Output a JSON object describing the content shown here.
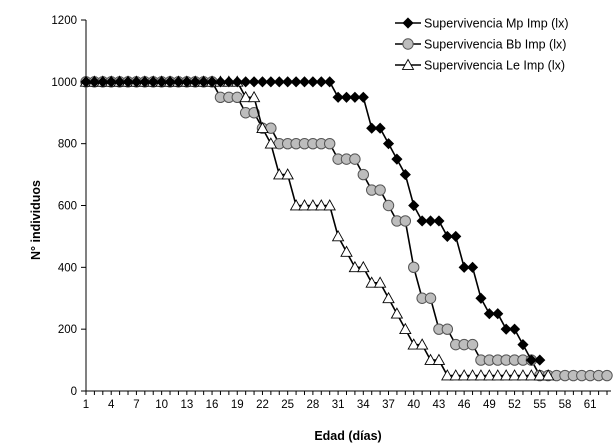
{
  "chart_data": {
    "type": "line",
    "title": "",
    "xlabel": "Edad (días)",
    "ylabel": "N° individuos",
    "x": [
      1,
      2,
      3,
      4,
      5,
      6,
      7,
      8,
      9,
      10,
      11,
      12,
      13,
      14,
      15,
      16,
      17,
      18,
      19,
      20,
      21,
      22,
      23,
      24,
      25,
      26,
      27,
      28,
      29,
      30,
      31,
      32,
      33,
      34,
      35,
      36,
      37,
      38,
      39,
      40,
      41,
      42,
      43,
      44,
      45,
      46,
      47,
      48,
      49,
      50,
      51,
      52,
      53,
      54,
      55,
      56,
      57,
      58,
      59,
      60,
      61,
      62,
      63
    ],
    "x_tick_labels": [
      "1",
      "4",
      "7",
      "10",
      "13",
      "16",
      "19",
      "22",
      "25",
      "28",
      "31",
      "34",
      "37",
      "40",
      "43",
      "46",
      "49",
      "52",
      "55",
      "58",
      "61"
    ],
    "xlim": [
      1,
      63
    ],
    "ylim": [
      0,
      1200
    ],
    "y_ticks": [
      0,
      200,
      400,
      600,
      800,
      1000,
      1200
    ],
    "grid": false,
    "legend_position": "top-right",
    "series": [
      {
        "name": "Supervivencia Mp Imp (lx)",
        "marker": "diamond",
        "color": "#000000",
        "x": [
          1,
          2,
          3,
          4,
          5,
          6,
          7,
          8,
          9,
          10,
          11,
          12,
          13,
          14,
          15,
          16,
          17,
          18,
          19,
          20,
          21,
          22,
          23,
          24,
          25,
          26,
          27,
          28,
          29,
          30,
          31,
          32,
          33,
          34,
          35,
          36,
          37,
          38,
          39,
          40,
          41,
          42,
          43,
          44,
          45,
          46,
          47,
          48,
          49,
          50,
          51,
          52,
          53,
          54,
          55
        ],
        "values": [
          1000,
          1000,
          1000,
          1000,
          1000,
          1000,
          1000,
          1000,
          1000,
          1000,
          1000,
          1000,
          1000,
          1000,
          1000,
          1000,
          1000,
          1000,
          1000,
          1000,
          1000,
          1000,
          1000,
          1000,
          1000,
          1000,
          1000,
          1000,
          1000,
          1000,
          950,
          950,
          950,
          950,
          850,
          850,
          800,
          750,
          700,
          600,
          550,
          550,
          550,
          500,
          500,
          400,
          400,
          300,
          250,
          250,
          200,
          200,
          150,
          100,
          100
        ]
      },
      {
        "name": "Supervivencia Bb Imp (lx)",
        "marker": "circle",
        "color": "#000000",
        "x": [
          1,
          2,
          3,
          4,
          5,
          6,
          7,
          8,
          9,
          10,
          11,
          12,
          13,
          14,
          15,
          16,
          17,
          18,
          19,
          20,
          21,
          22,
          23,
          24,
          25,
          26,
          27,
          28,
          29,
          30,
          31,
          32,
          33,
          34,
          35,
          36,
          37,
          38,
          39,
          40,
          41,
          42,
          43,
          44,
          45,
          46,
          47,
          48,
          49,
          50,
          51,
          52,
          53,
          54,
          55,
          56,
          57,
          58,
          59,
          60,
          61,
          62,
          63
        ],
        "values": [
          1000,
          1000,
          1000,
          1000,
          1000,
          1000,
          1000,
          1000,
          1000,
          1000,
          1000,
          1000,
          1000,
          1000,
          1000,
          1000,
          950,
          950,
          950,
          900,
          900,
          850,
          850,
          800,
          800,
          800,
          800,
          800,
          800,
          800,
          750,
          750,
          750,
          700,
          650,
          650,
          600,
          550,
          550,
          400,
          300,
          300,
          200,
          200,
          150,
          150,
          150,
          100,
          100,
          100,
          100,
          100,
          100,
          100,
          50,
          50,
          50,
          50,
          50,
          50,
          50,
          50,
          50
        ]
      },
      {
        "name": "Supervivencia Le Imp (lx)",
        "marker": "triangle",
        "color": "#000000",
        "x": [
          1,
          2,
          3,
          4,
          5,
          6,
          7,
          8,
          9,
          10,
          11,
          12,
          13,
          14,
          15,
          16,
          17,
          18,
          19,
          20,
          21,
          22,
          23,
          24,
          25,
          26,
          27,
          28,
          29,
          30,
          31,
          32,
          33,
          34,
          35,
          36,
          37,
          38,
          39,
          40,
          41,
          42,
          43,
          44,
          45,
          46,
          47,
          48,
          49,
          50,
          51,
          52,
          53,
          54,
          55,
          56
        ],
        "values": [
          1000,
          1000,
          1000,
          1000,
          1000,
          1000,
          1000,
          1000,
          1000,
          1000,
          1000,
          1000,
          1000,
          1000,
          1000,
          1000,
          1000,
          1000,
          1000,
          950,
          950,
          850,
          800,
          700,
          700,
          600,
          600,
          600,
          600,
          600,
          500,
          450,
          400,
          400,
          350,
          350,
          300,
          250,
          200,
          150,
          150,
          100,
          100,
          50,
          50,
          50,
          50,
          50,
          50,
          50,
          50,
          50,
          50,
          50,
          50,
          50
        ]
      }
    ]
  }
}
